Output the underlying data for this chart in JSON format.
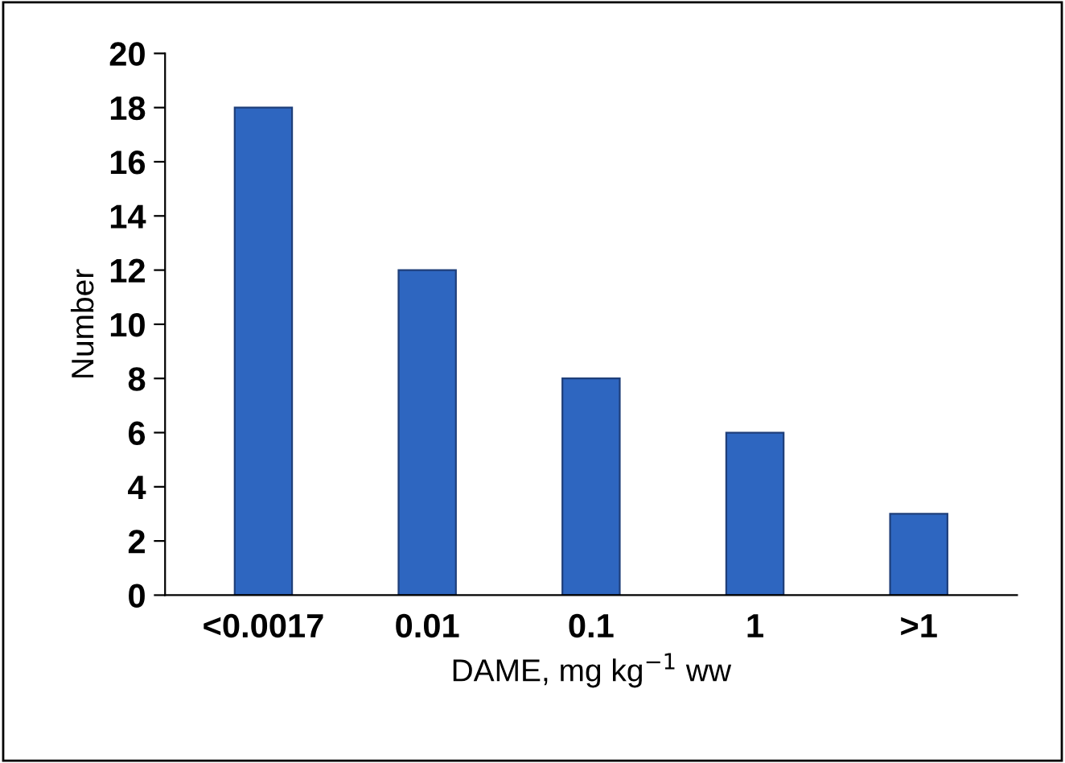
{
  "chart_data": {
    "type": "bar",
    "xlabel": "DAME, mg kg$^{−1}$ ww",
    "ylabel": "Number",
    "categories": [
      "<0.0017",
      "0.01",
      "0.1",
      "1",
      ">1"
    ],
    "values": [
      18,
      12,
      8,
      6,
      3
    ],
    "color": "#2e66c0",
    "ylim": [
      0,
      20
    ],
    "yticks": [
      0,
      2,
      4,
      6,
      8,
      10,
      12,
      14,
      16,
      18,
      20
    ],
    "grid": false,
    "legend": false
  }
}
